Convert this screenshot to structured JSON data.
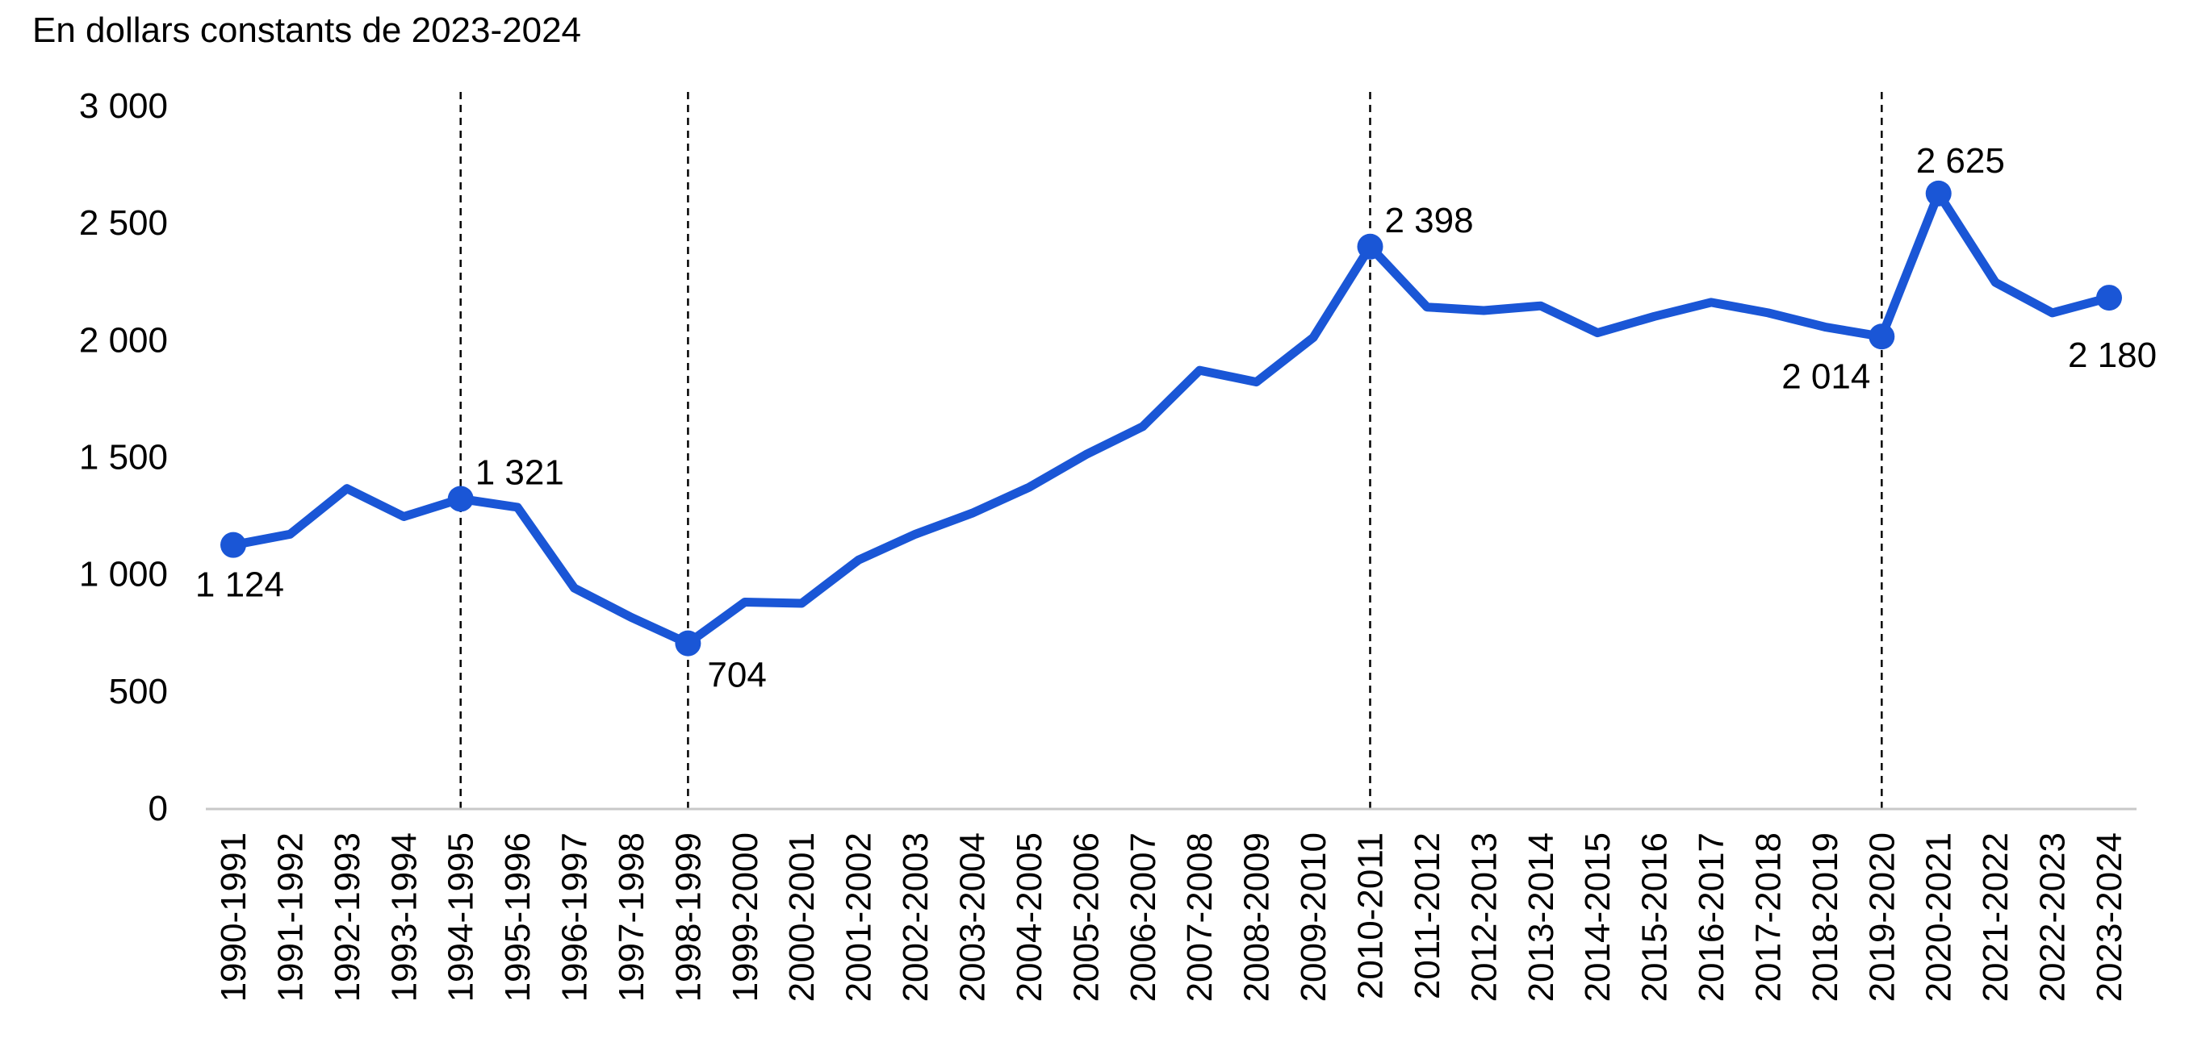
{
  "chart_data": {
    "type": "line",
    "unit_label": "En dollars constants de 2023-2024",
    "xlabel": "",
    "ylabel": "",
    "ylim": [
      0,
      3000
    ],
    "y_ticks": [
      0,
      500,
      1000,
      1500,
      2000,
      2500,
      3000
    ],
    "y_tick_labels": [
      "0",
      "500",
      "1 000",
      "1 500",
      "2 000",
      "2 500",
      "3 000"
    ],
    "categories": [
      "1990-1991",
      "1991-1992",
      "1992-1993",
      "1993-1994",
      "1994-1995",
      "1995-1996",
      "1996-1997",
      "1997-1998",
      "1998-1999",
      "1999-2000",
      "2000-2001",
      "2001-2002",
      "2002-2003",
      "2003-2004",
      "2004-2005",
      "2005-2006",
      "2006-2007",
      "2007-2008",
      "2008-2009",
      "2009-2010",
      "2010-2011",
      "2011-2012",
      "2012-2013",
      "2013-2014",
      "2014-2015",
      "2015-2016",
      "2016-2017",
      "2017-2018",
      "2018-2019",
      "2019-2020",
      "2020-2021",
      "2021-2022",
      "2022-2023",
      "2023-2024"
    ],
    "series": [
      {
        "values": [
          1124,
          1170,
          1365,
          1245,
          1321,
          1285,
          940,
          815,
          704,
          880,
          875,
          1060,
          1170,
          1260,
          1370,
          1510,
          1630,
          1870,
          1820,
          2010,
          2398,
          2140,
          2125,
          2145,
          2030,
          2100,
          2160,
          2115,
          2055,
          2014,
          2625,
          2245,
          2115,
          2180
        ],
        "color": "#1a56d6"
      }
    ],
    "highlighted_points": [
      {
        "category": "1990-1991",
        "value": 1124,
        "label": "1 124",
        "label_position": "below-left"
      },
      {
        "category": "1994-1995",
        "value": 1321,
        "label": "1 321",
        "label_position": "above-right"
      },
      {
        "category": "1998-1999",
        "value": 704,
        "label": "704",
        "label_position": "below-right"
      },
      {
        "category": "2010-2011",
        "value": 2398,
        "label": "2 398",
        "label_position": "above-right"
      },
      {
        "category": "2019-2020",
        "value": 2014,
        "label": "2 014",
        "label_position": "below-left"
      },
      {
        "category": "2020-2021",
        "value": 2625,
        "label": "2 625",
        "label_position": "above"
      },
      {
        "category": "2023-2024",
        "value": 2180,
        "label": "2 180",
        "label_position": "below"
      }
    ],
    "reference_lines": [
      "1994-1995",
      "1998-1999",
      "2010-2011",
      "2019-2020"
    ],
    "grid": false,
    "legend": "none",
    "colors": {
      "line": "#1a56d6",
      "axis": "#c8c8c8",
      "reference_line": "#000000",
      "text": "#000000"
    }
  }
}
